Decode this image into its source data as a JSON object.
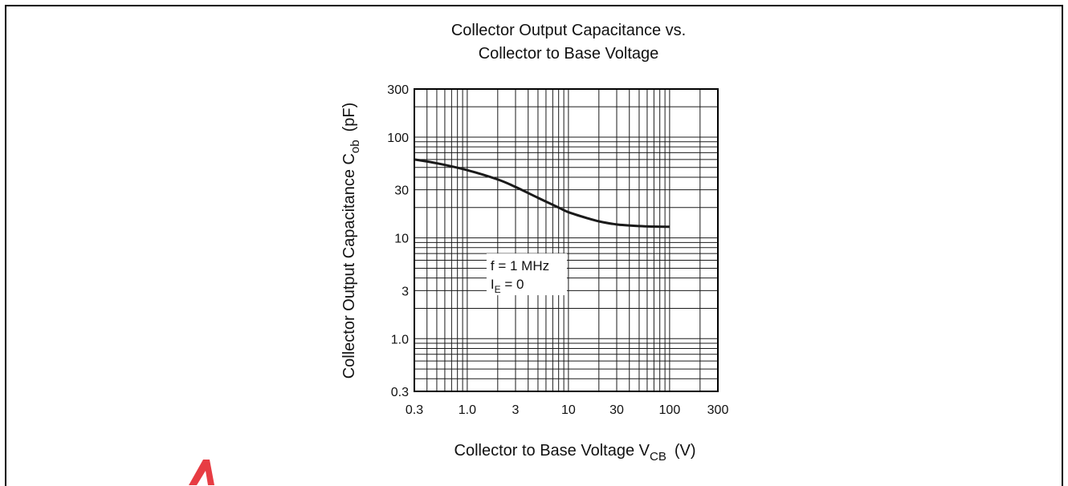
{
  "chart_data": {
    "type": "line",
    "title_line1": "Collector Output Capacitance vs.",
    "title_line2": "Collector to Base Voltage",
    "xlabel": "Collector to Base Voltage  V",
    "xlabel_sub": "CB",
    "xlabel_unit": "(V)",
    "ylabel": "Collector Output Capacitance  C",
    "ylabel_sub": "ob",
    "ylabel_unit": "(pF)",
    "x_scale": "log",
    "y_scale": "log",
    "xlim": [
      0.3,
      300
    ],
    "ylim": [
      0.3,
      300
    ],
    "x_ticks": [
      "0.3",
      "1.0",
      "3",
      "10",
      "30",
      "100",
      "300"
    ],
    "x_tick_values": [
      0.3,
      1,
      3,
      10,
      30,
      100,
      300
    ],
    "y_ticks": [
      "300",
      "100",
      "30",
      "10",
      "3",
      "1.0",
      "0.3"
    ],
    "y_tick_values": [
      300,
      100,
      30,
      10,
      3,
      1,
      0.3
    ],
    "grid": true,
    "series": [
      {
        "x": [
          0.3,
          0.5,
          1,
          2,
          3,
          5,
          8,
          10,
          15,
          20,
          30,
          50,
          70,
          100
        ],
        "y": [
          60,
          55,
          47,
          38,
          32,
          25,
          20,
          18,
          15.8,
          14.6,
          13.6,
          13.1,
          12.95,
          12.9
        ]
      }
    ],
    "annotations": {
      "line1": "f = 1 MHz",
      "line2_main": "I",
      "line2_sub": "E",
      "line2_rest": " = 0"
    },
    "colors": {
      "line": "#1a1a1a",
      "grid": "#1a1a1a",
      "watermark": "#e31b23"
    }
  }
}
